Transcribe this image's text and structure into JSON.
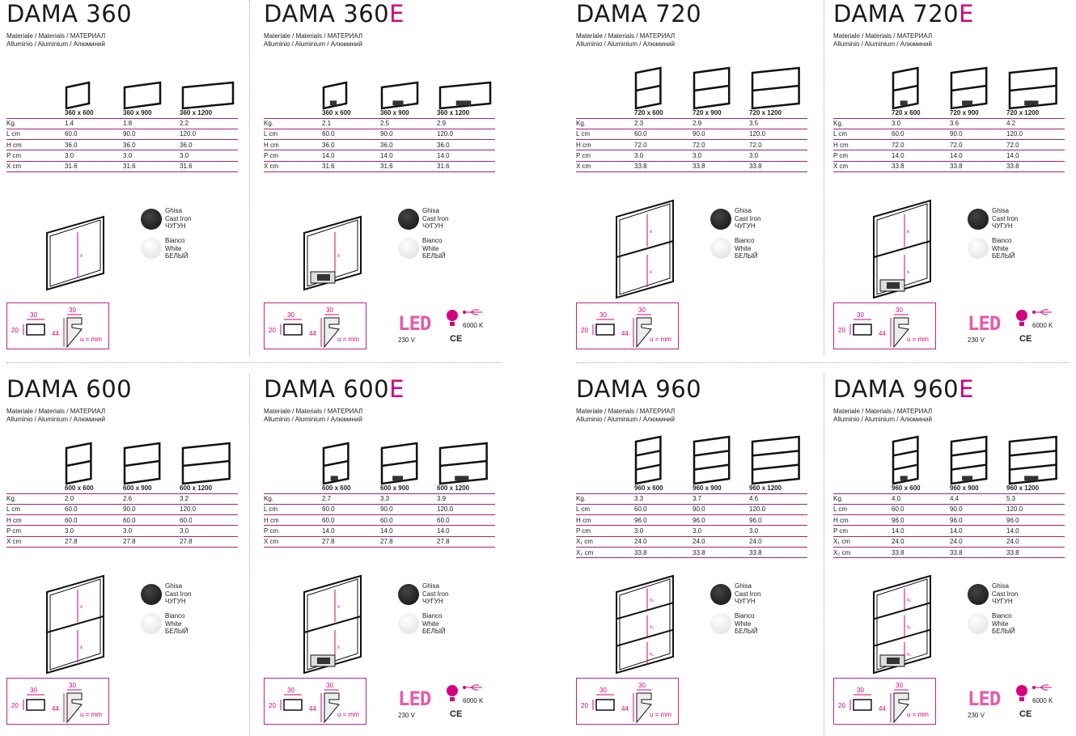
{
  "material_line1": "Materiale / Materials / МАТЕРИАЛ",
  "material_line2": "Alluminio / Aluminium / Алюминий",
  "finishes": [
    {
      "name": "Ghisa",
      "en": "Cast Iron",
      "ru": "ЧУГУН",
      "color": "#1e1e1e"
    },
    {
      "name": "Bianco",
      "en": "White",
      "ru": "БЕЛЫЙ",
      "color": "#eeeeee"
    }
  ],
  "profile": {
    "w1": "30",
    "h1": "20",
    "w2": "30",
    "h2": "44",
    "unit": "u = mm"
  },
  "led": {
    "label": "LED",
    "voltage": "230 V",
    "temperature": "6000 K",
    "ce": "CE",
    "accent": "#d6007e"
  },
  "panels": [
    {
      "name": "DAMA 360",
      "suffix": "",
      "sections": 1,
      "sizes": [
        "360 x 600",
        "360 x 900",
        "360 x 1200"
      ],
      "rows": [
        [
          "Kg.",
          "1.4",
          "1.8",
          "2.2"
        ],
        [
          "L cm",
          "60.0",
          "90.0",
          "120.0"
        ],
        [
          "H cm",
          "36.0",
          "36.0",
          "36.0"
        ],
        [
          "P cm",
          "3.0",
          "3.0",
          "3.0"
        ],
        [
          "X cm",
          "31.6",
          "31.6",
          "31.6"
        ]
      ]
    },
    {
      "name": "DAMA 360",
      "suffix": "E",
      "sections": 1,
      "sizes": [
        "360 x 600",
        "360 x 900",
        "360 x 1200"
      ],
      "rows": [
        [
          "Kg.",
          "2.1",
          "2.5",
          "2.9"
        ],
        [
          "L cm",
          "60.0",
          "90.0",
          "120.0"
        ],
        [
          "H cm",
          "36.0",
          "36.0",
          "36.0"
        ],
        [
          "P cm",
          "14.0",
          "14.0",
          "14.0"
        ],
        [
          "X cm",
          "31.6",
          "31.6",
          "31.6"
        ]
      ]
    },
    {
      "name": "DAMA 720",
      "suffix": "",
      "sections": 2,
      "sizes": [
        "720 x 600",
        "720 x 900",
        "720 x 1200"
      ],
      "rows": [
        [
          "Kg.",
          "2.3",
          "2.9",
          "3.5"
        ],
        [
          "L cm",
          "60.0",
          "90.0",
          "120.0"
        ],
        [
          "H cm",
          "72.0",
          "72.0",
          "72.0"
        ],
        [
          "P cm",
          "3.0",
          "3.0",
          "3.0"
        ],
        [
          "X cm",
          "33.8",
          "33.8",
          "33.8"
        ]
      ]
    },
    {
      "name": "DAMA 720",
      "suffix": "E",
      "sections": 2,
      "sizes": [
        "720 x 600",
        "720 x 900",
        "720 x 1200"
      ],
      "rows": [
        [
          "Kg.",
          "3.0",
          "3.6",
          "4.2"
        ],
        [
          "L cm",
          "60.0",
          "90.0",
          "120.0"
        ],
        [
          "H cm",
          "72.0",
          "72.0",
          "72.0"
        ],
        [
          "P cm",
          "14.0",
          "14.0",
          "14.0"
        ],
        [
          "X cm",
          "33.8",
          "33.8",
          "33.8"
        ]
      ]
    },
    {
      "name": "DAMA 600",
      "suffix": "",
      "sections": 2,
      "sizes": [
        "600 x 600",
        "600 x 900",
        "600 x 1200"
      ],
      "rows": [
        [
          "Kg.",
          "2.0",
          "2.6",
          "3.2"
        ],
        [
          "L cm",
          "60.0",
          "90.0",
          "120.0"
        ],
        [
          "H cm",
          "60.0",
          "60.0",
          "60.0"
        ],
        [
          "P cm",
          "3.0",
          "3.0",
          "3.0"
        ],
        [
          "X cm",
          "27.8",
          "27.8",
          "27.8"
        ]
      ]
    },
    {
      "name": "DAMA 600",
      "suffix": "E",
      "sections": 2,
      "sizes": [
        "600 x 600",
        "600 x 900",
        "600 x 1200"
      ],
      "rows": [
        [
          "Kg.",
          "2.7",
          "3.3",
          "3.9"
        ],
        [
          "L cm",
          "60.0",
          "90.0",
          "120.0"
        ],
        [
          "H cm",
          "60.0",
          "60.0",
          "60.0"
        ],
        [
          "P cm",
          "14.0",
          "14.0",
          "14.0"
        ],
        [
          "X cm",
          "27.8",
          "27.8",
          "27.8"
        ]
      ]
    },
    {
      "name": "DAMA 960",
      "suffix": "",
      "sections": 3,
      "sizes": [
        "960 x 600",
        "960 x 900",
        "960 x 1200"
      ],
      "rows": [
        [
          "Kg.",
          "3.3",
          "3.7",
          "4.6"
        ],
        [
          "L cm",
          "60.0",
          "90.0",
          "120.0"
        ],
        [
          "H cm",
          "96.0",
          "96.0",
          "96.0"
        ],
        [
          "P cm",
          "3.0",
          "3.0",
          "3.0"
        ],
        [
          "X₁ cm",
          "24.0",
          "24.0",
          "24.0"
        ],
        [
          "X₂ cm",
          "33.8",
          "33.8",
          "33.8"
        ]
      ]
    },
    {
      "name": "DAMA 960",
      "suffix": "E",
      "sections": 3,
      "sizes": [
        "960 x 600",
        "960 x 900",
        "960 x 1200"
      ],
      "rows": [
        [
          "Kg.",
          "4.0",
          "4.4",
          "5.3"
        ],
        [
          "L cm",
          "60.0",
          "90.0",
          "120.0"
        ],
        [
          "H cm",
          "96.0",
          "96.0",
          "96.0"
        ],
        [
          "P cm",
          "14.0",
          "14.0",
          "14.0"
        ],
        [
          "X₁ cm",
          "24.0",
          "24.0",
          "24.0"
        ],
        [
          "X₂ cm",
          "33.8",
          "33.8",
          "33.8"
        ]
      ]
    }
  ]
}
